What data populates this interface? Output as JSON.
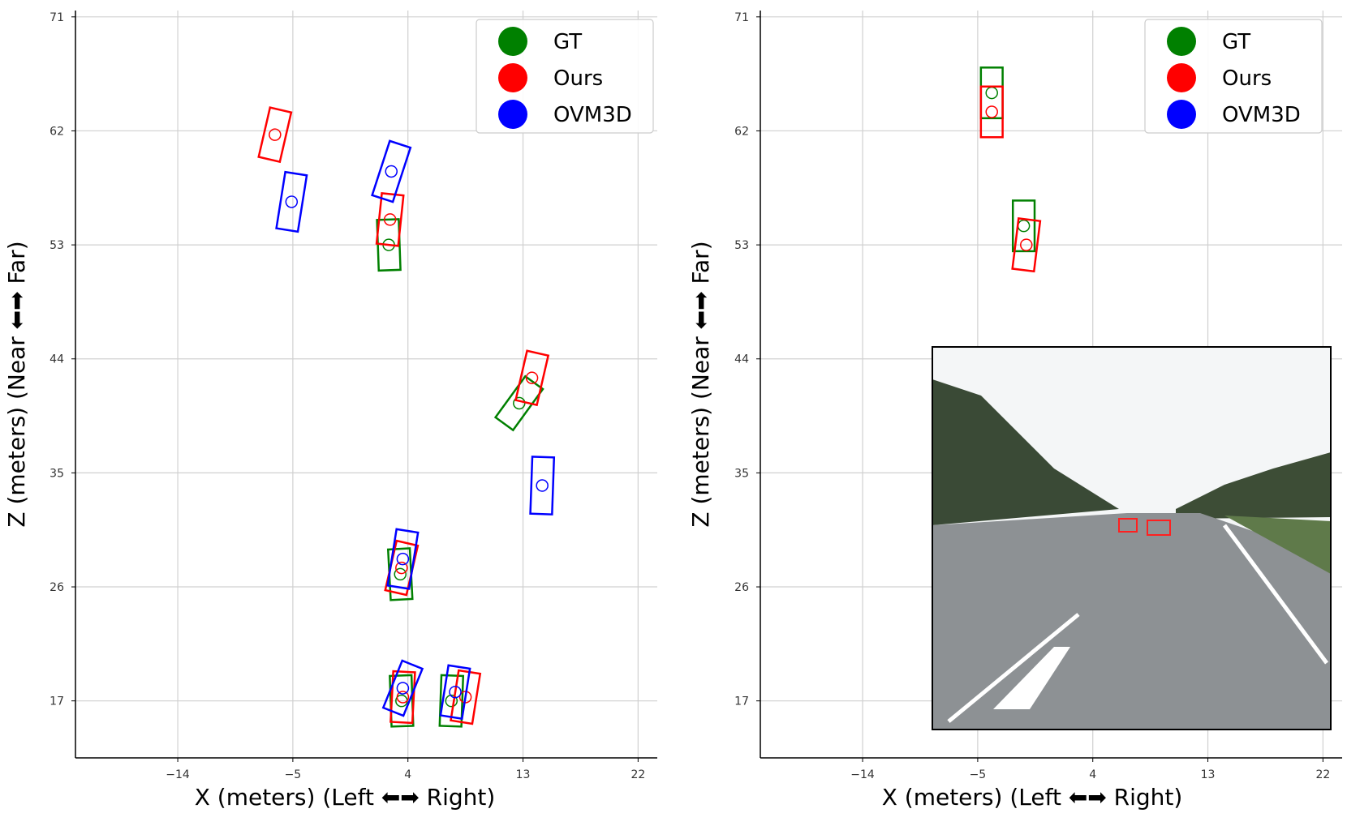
{
  "chart_data": [
    {
      "type": "scatter",
      "title": "",
      "xlabel": "X (meters) (Left ⬅➡ Right)",
      "ylabel": "Z (meters) (Near ⬅➡ Far)",
      "xlim": [
        -22,
        23.5
      ],
      "ylim": [
        12.5,
        71.5
      ],
      "xticks": [
        -14,
        -5,
        4,
        13,
        22
      ],
      "yticks": [
        17,
        26,
        35,
        44,
        53,
        62,
        71
      ],
      "xtick_labels": [
        "−14",
        "−5",
        "4",
        "13",
        "22"
      ],
      "ytick_labels": [
        "17",
        "26",
        "35",
        "44",
        "53",
        "62",
        "71"
      ],
      "grid": true,
      "legend": {
        "position": "top-right",
        "entries": [
          {
            "label": "GT",
            "color": "#008000"
          },
          {
            "label": "Ours",
            "color": "#ff0000"
          },
          {
            "label": "OVM3D",
            "color": "#0000ff"
          }
        ]
      },
      "series": [
        {
          "name": "GT",
          "color": "#008000",
          "boxes": [
            {
              "x": 2.5,
              "z": 53.0,
              "w": 1.7,
              "l": 4.0,
              "rot": -2
            },
            {
              "x": 3.4,
              "z": 27.0,
              "w": 1.7,
              "l": 4.0,
              "rot": -3
            },
            {
              "x": 3.5,
              "z": 17.0,
              "w": 1.7,
              "l": 4.0,
              "rot": -2
            },
            {
              "x": 7.4,
              "z": 17.0,
              "w": 1.7,
              "l": 4.0,
              "rot": 2
            },
            {
              "x": 12.7,
              "z": 40.5,
              "w": 1.7,
              "l": 4.0,
              "rot": 36
            }
          ]
        },
        {
          "name": "Ours",
          "color": "#ff0000",
          "boxes": [
            {
              "x": -6.4,
              "z": 61.7,
              "w": 1.7,
              "l": 4.0,
              "rot": 13
            },
            {
              "x": 2.6,
              "z": 55.0,
              "w": 1.7,
              "l": 4.0,
              "rot": 6
            },
            {
              "x": 3.5,
              "z": 27.5,
              "w": 1.7,
              "l": 4.0,
              "rot": 13
            },
            {
              "x": 3.6,
              "z": 17.3,
              "w": 1.7,
              "l": 4.0,
              "rot": 3
            },
            {
              "x": 8.5,
              "z": 17.3,
              "w": 1.7,
              "l": 4.0,
              "rot": 9
            },
            {
              "x": 13.7,
              "z": 42.5,
              "w": 1.7,
              "l": 4.0,
              "rot": 13
            }
          ]
        },
        {
          "name": "OVM3D",
          "color": "#0000ff",
          "boxes": [
            {
              "x": -5.1,
              "z": 56.4,
              "w": 1.7,
              "l": 4.5,
              "rot": 9
            },
            {
              "x": 2.7,
              "z": 58.8,
              "w": 1.7,
              "l": 4.5,
              "rot": 18
            },
            {
              "x": 3.6,
              "z": 28.2,
              "w": 1.7,
              "l": 4.5,
              "rot": 9
            },
            {
              "x": 3.6,
              "z": 18.0,
              "w": 1.7,
              "l": 4.0,
              "rot": 22
            },
            {
              "x": 7.7,
              "z": 17.7,
              "w": 1.7,
              "l": 4.0,
              "rot": 9
            },
            {
              "x": 14.5,
              "z": 34.0,
              "w": 1.7,
              "l": 4.5,
              "rot": 2
            }
          ]
        }
      ]
    },
    {
      "type": "scatter",
      "title": "",
      "xlabel": "X (meters) (Left ⬅➡ Right)",
      "ylabel": "Z (meters) (Near ⬅➡ Far)",
      "xlim": [
        -22,
        23.5
      ],
      "ylim": [
        12.5,
        71.5
      ],
      "xticks": [
        -14,
        -5,
        4,
        13,
        22
      ],
      "yticks": [
        17,
        26,
        35,
        44,
        53,
        62,
        71
      ],
      "xtick_labels": [
        "−14",
        "−5",
        "4",
        "13",
        "22"
      ],
      "ytick_labels": [
        "17",
        "26",
        "35",
        "44",
        "53",
        "62",
        "71"
      ],
      "grid": true,
      "legend": {
        "position": "top-right",
        "entries": [
          {
            "label": "GT",
            "color": "#008000"
          },
          {
            "label": "Ours",
            "color": "#ff0000"
          },
          {
            "label": "OVM3D",
            "color": "#0000ff"
          }
        ]
      },
      "inset": {
        "description": "camera image",
        "detected_boxes": 2
      },
      "series": [
        {
          "name": "GT",
          "color": "#008000",
          "boxes": [
            {
              "x": -3.9,
              "z": 65.0,
              "w": 1.7,
              "l": 4.0,
              "rot": 0
            },
            {
              "x": -1.4,
              "z": 54.5,
              "w": 1.7,
              "l": 4.0,
              "rot": 0
            }
          ]
        },
        {
          "name": "Ours",
          "color": "#ff0000",
          "boxes": [
            {
              "x": -3.9,
              "z": 63.5,
              "w": 1.7,
              "l": 4.0,
              "rot": 0
            },
            {
              "x": -1.2,
              "z": 53.0,
              "w": 1.7,
              "l": 4.0,
              "rot": 7
            }
          ]
        },
        {
          "name": "OVM3D",
          "color": "#0000ff",
          "boxes": []
        }
      ]
    }
  ]
}
